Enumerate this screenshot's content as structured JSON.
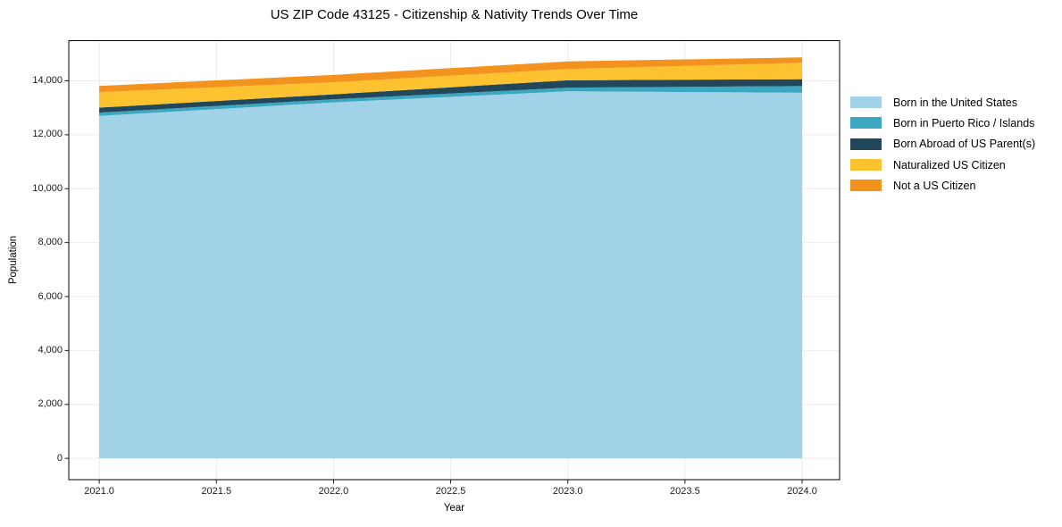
{
  "chart_data": {
    "type": "area",
    "stacked": true,
    "title": "US ZIP Code 43125 - Citizenship & Nativity Trends Over Time",
    "xlabel": "Year",
    "ylabel": "Population",
    "grid": true,
    "legend_position": "right-outside",
    "x": [
      2021,
      2022,
      2023,
      2024
    ],
    "series": [
      {
        "name": "Born in the United States",
        "color": "#A2D2E8",
        "values": [
          12700,
          13200,
          13610,
          13560
        ]
      },
      {
        "name": "Born in Puerto Rico / Islands",
        "color": "#3BA7C0",
        "values": [
          120,
          115,
          135,
          245
        ]
      },
      {
        "name": "Born Abroad of US Parent(s)",
        "color": "#21475A",
        "values": [
          185,
          185,
          275,
          255
        ]
      },
      {
        "name": "Naturalized US Citizen",
        "color": "#FDC22F",
        "values": [
          575,
          445,
          420,
          610
        ]
      },
      {
        "name": "Not a US Citizen",
        "color": "#F4921E",
        "values": [
          230,
          275,
          280,
          200
        ]
      }
    ],
    "stack_totals": [
      13810,
      14220,
      14720,
      14870
    ],
    "xlim": [
      2020.87,
      2024.16
    ],
    "ylim": [
      -790,
      15490
    ],
    "xticks": {
      "values": [
        2021,
        2021.5,
        2022,
        2022.5,
        2023,
        2023.5,
        2024
      ],
      "labels": [
        "2021.0",
        "2021.5",
        "2022.0",
        "2022.5",
        "2023.0",
        "2023.5",
        "2024.0"
      ]
    },
    "yticks": {
      "values": [
        0,
        2000,
        4000,
        6000,
        8000,
        10000,
        12000,
        14000
      ],
      "labels": [
        "0",
        "2,000",
        "4,000",
        "6,000",
        "8,000",
        "10,000",
        "12,000",
        "14,000"
      ]
    },
    "colors": {
      "grid": "#ebebeb",
      "spine": "#000000",
      "tick": "#1a1a1a"
    }
  }
}
